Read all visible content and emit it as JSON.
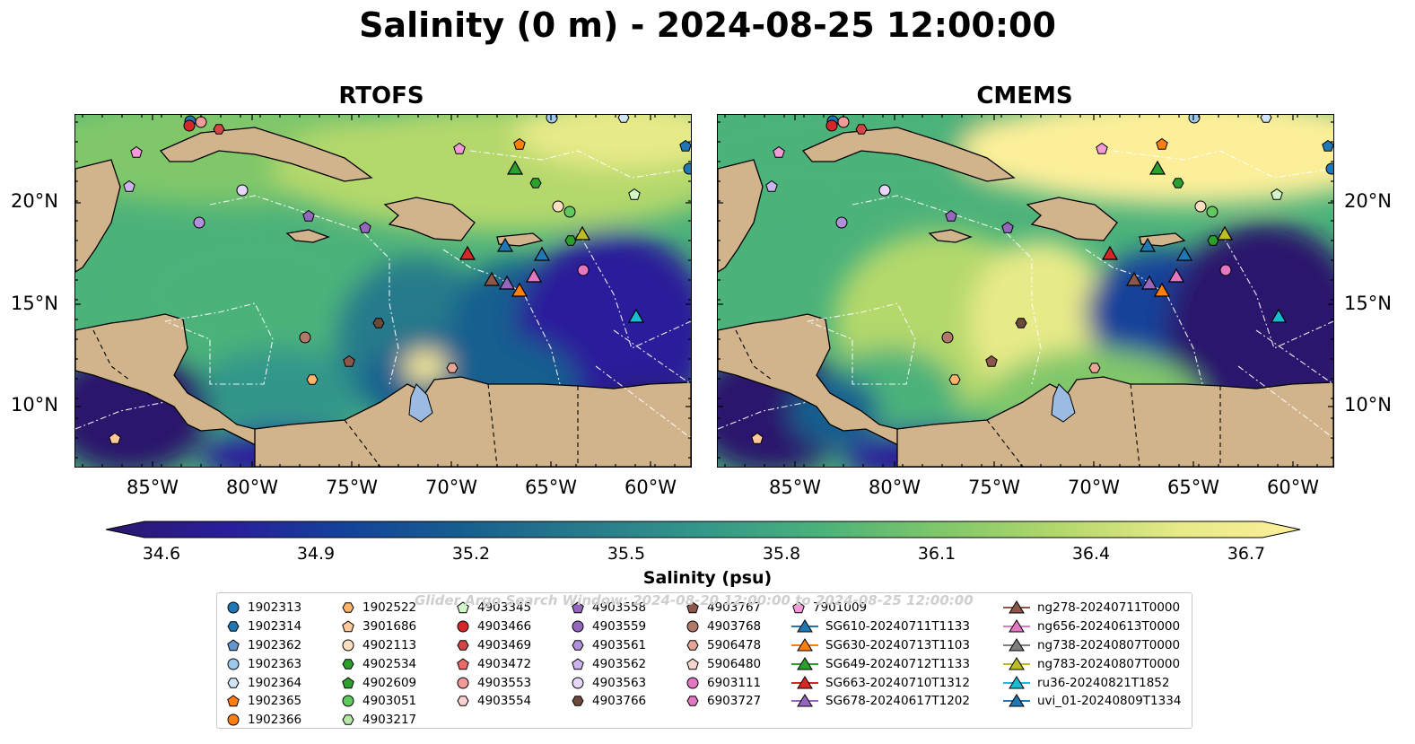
{
  "title": "Salinity (0 m) - 2024-08-25 12:00:00",
  "panels": [
    {
      "title": "RTOFS"
    },
    {
      "title": "CMEMS"
    }
  ],
  "axes": {
    "lon_ticks": [
      "85°W",
      "80°W",
      "75°W",
      "70°W",
      "65°W",
      "60°W"
    ],
    "lat_ticks": [
      "20°N",
      "15°N",
      "10°N"
    ]
  },
  "colorbar": {
    "label": "Salinity (psu)",
    "ticks": [
      "34.6",
      "34.9",
      "35.2",
      "35.5",
      "35.8",
      "36.1",
      "36.4",
      "36.7"
    ],
    "min": 34.6,
    "max": 36.7,
    "colormap": "haline",
    "colors": [
      "#2a186c",
      "#2a1d9a",
      "#14429a",
      "#175f8f",
      "#287a8b",
      "#33978a",
      "#4bb27a",
      "#80c76a",
      "#b4d86c",
      "#e7ea88",
      "#fdef9a"
    ]
  },
  "colors": {
    "land": "#d2b48c",
    "lake": "#9bbbe3",
    "ocean_low": "#2a186c",
    "ocean_high": "#fdef9a"
  },
  "legend": {
    "watermark": "Glider Argo Search Window: 2024-08-20 12:00:00 to 2024-08-25 12:00:00",
    "columns": [
      [
        {
          "label": "1902313",
          "marker": "circle",
          "color": "#1f77b4"
        },
        {
          "label": "1902314",
          "marker": "hexagon",
          "color": "#1f77b4"
        },
        {
          "label": "1902362",
          "marker": "pentagon",
          "color": "#6495cd"
        },
        {
          "label": "1902363",
          "marker": "circle",
          "color": "#9ec9ea"
        },
        {
          "label": "1902364",
          "marker": "hexagon",
          "color": "#cfe4f7"
        },
        {
          "label": "1902365",
          "marker": "pentagon",
          "color": "#ff7f0e"
        },
        {
          "label": "1902366",
          "marker": "circle",
          "color": "#ff7f0e"
        }
      ],
      [
        {
          "label": "1902522",
          "marker": "hexagon",
          "color": "#ffb36b"
        },
        {
          "label": "3901686",
          "marker": "pentagon",
          "color": "#ffc89a"
        },
        {
          "label": "4902113",
          "marker": "circle",
          "color": "#ffdfc0"
        },
        {
          "label": "4902534",
          "marker": "hexagon",
          "color": "#2ca02c"
        },
        {
          "label": "4902609",
          "marker": "pentagon",
          "color": "#2ca02c"
        },
        {
          "label": "4903051",
          "marker": "circle",
          "color": "#5fc95f"
        },
        {
          "label": "4903217",
          "marker": "hexagon",
          "color": "#b6e7a9"
        }
      ],
      [
        {
          "label": "4903345",
          "marker": "pentagon",
          "color": "#d4f7c9"
        },
        {
          "label": "4903466",
          "marker": "circle",
          "color": "#d62728"
        },
        {
          "label": "4903469",
          "marker": "hexagon",
          "color": "#d64545"
        },
        {
          "label": "4903472",
          "marker": "pentagon",
          "color": "#e86a6a"
        },
        {
          "label": "4903553",
          "marker": "circle",
          "color": "#f19a9a"
        },
        {
          "label": "4903554",
          "marker": "hexagon",
          "color": "#fbd0d0"
        }
      ],
      [
        {
          "label": "4903558",
          "marker": "pentagon",
          "color": "#9467bd"
        },
        {
          "label": "4903559",
          "marker": "circle",
          "color": "#9467bd"
        },
        {
          "label": "4903561",
          "marker": "hexagon",
          "color": "#b08fdb"
        },
        {
          "label": "4903562",
          "marker": "pentagon",
          "color": "#cdb4ee"
        },
        {
          "label": "4903563",
          "marker": "circle",
          "color": "#e6d6fa"
        },
        {
          "label": "4903766",
          "marker": "hexagon",
          "color": "#6b4a3a"
        }
      ],
      [
        {
          "label": "4903767",
          "marker": "pentagon",
          "color": "#8c564b"
        },
        {
          "label": "4903768",
          "marker": "circle",
          "color": "#b07a6a"
        },
        {
          "label": "5906478",
          "marker": "hexagon",
          "color": "#e6a595"
        },
        {
          "label": "5906480",
          "marker": "pentagon",
          "color": "#f5d7cf"
        },
        {
          "label": "6903111",
          "marker": "circle",
          "color": "#e377c2"
        },
        {
          "label": "6903727",
          "marker": "hexagon",
          "color": "#e377c2"
        }
      ],
      [
        {
          "label": "7901009",
          "marker": "pentagon",
          "color": "#f29bd6"
        },
        {
          "label": "SG610-20240711T1133",
          "marker": "triangle",
          "color": "#1f77b4"
        },
        {
          "label": "SG630-20240713T1103",
          "marker": "triangle",
          "color": "#ff7f0e"
        },
        {
          "label": "SG649-20240712T1133",
          "marker": "triangle",
          "color": "#2ca02c"
        },
        {
          "label": "SG663-20240710T1312",
          "marker": "triangle",
          "color": "#d62728"
        },
        {
          "label": "SG678-20240617T1202",
          "marker": "triangle",
          "color": "#9467bd"
        }
      ],
      [
        {
          "label": "ng278-20240711T0000",
          "marker": "triangle",
          "color": "#8c564b"
        },
        {
          "label": "ng656-20240613T0000",
          "marker": "triangle",
          "color": "#e377c2"
        },
        {
          "label": "ng738-20240807T0000",
          "marker": "triangle",
          "color": "#7f7f7f"
        },
        {
          "label": "ng783-20240807T0000",
          "marker": "triangle",
          "color": "#bcbd22"
        },
        {
          "label": "ru36-20240821T1852",
          "marker": "triangle",
          "color": "#17becf"
        },
        {
          "label": "uvi_01-20240809T1334",
          "marker": "triangle",
          "color": "#1f77b4"
        }
      ]
    ]
  }
}
